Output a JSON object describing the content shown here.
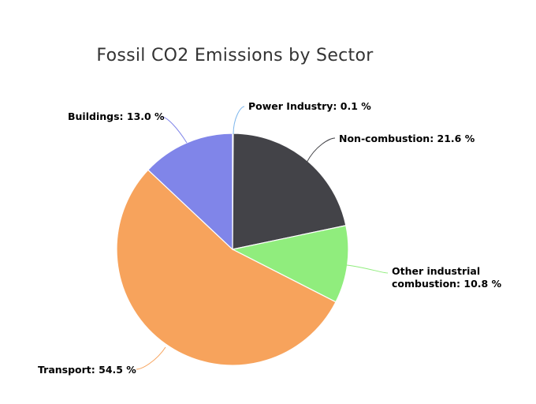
{
  "chart_data": {
    "type": "pie",
    "title": "Fossil CO2 Emissions by Sector",
    "unit": "%",
    "slices": [
      {
        "name": "Power Industry",
        "value": 0.1,
        "label": "Power Industry: 0.1 %",
        "color": "#7cb5ec"
      },
      {
        "name": "Non-combustion",
        "value": 21.6,
        "label": "Non-combustion: 21.6 %",
        "color": "#434348"
      },
      {
        "name": "Other industrial combustion",
        "value": 10.8,
        "label_lines": [
          "Other industrial",
          "combustion: 10.8 %"
        ],
        "color": "#90ed7d"
      },
      {
        "name": "Transport",
        "value": 54.5,
        "label": "Transport: 54.5 %",
        "color": "#f7a35c"
      },
      {
        "name": "Buildings",
        "value": 13.0,
        "label": "Buildings: 13.0 %",
        "color": "#8085e9"
      }
    ]
  }
}
